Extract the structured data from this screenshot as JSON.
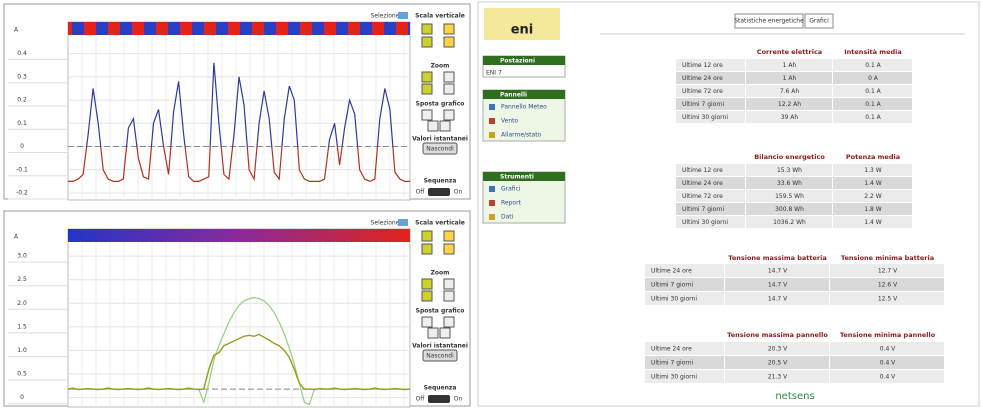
{
  "chart_data": [
    {
      "type": "line",
      "axis_label": "A",
      "ylim": [
        -0.23,
        0.48
      ],
      "yticks": [
        0.4,
        0.3,
        0.2,
        0.1,
        0,
        -0.1,
        -0.2
      ],
      "grid": true,
      "reference_line": 0,
      "series": [
        {
          "color_above": "#2c3a9e",
          "color_below": "#b2321f",
          "values": [
            -0.15,
            -0.15,
            -0.14,
            -0.12,
            0.05,
            0.25,
            0.1,
            -0.1,
            -0.14,
            -0.15,
            -0.15,
            -0.14,
            0.08,
            0.12,
            -0.05,
            -0.13,
            -0.14,
            0.1,
            0.16,
            0.0,
            -0.12,
            0.15,
            0.28,
            0.05,
            -0.13,
            -0.15,
            -0.15,
            -0.14,
            -0.13,
            0.36,
            0.1,
            -0.12,
            -0.14,
            0.05,
            0.3,
            0.18,
            -0.1,
            -0.14,
            0.1,
            0.24,
            0.12,
            -0.11,
            -0.14,
            0.12,
            0.26,
            0.2,
            -0.1,
            -0.14,
            -0.15,
            -0.15,
            -0.15,
            -0.14,
            0.03,
            0.1,
            -0.08,
            0.08,
            0.2,
            0.14,
            -0.1,
            -0.14,
            -0.15,
            -0.14,
            0.12,
            0.25,
            0.16,
            -0.11,
            -0.14,
            -0.15,
            -0.15
          ]
        }
      ]
    },
    {
      "type": "line",
      "axis_label": "A",
      "ylim": [
        -0.2,
        3.3
      ],
      "yticks": [
        {
          "value": 3,
          "label": "3.0"
        },
        2.5,
        {
          "value": 2,
          "label": "2.0"
        },
        1.5,
        {
          "value": 1,
          "label": "1.0"
        },
        0.5,
        0
      ],
      "grid": true,
      "reference_line": 0.18,
      "series": [
        {
          "color": "#8fd27a",
          "values": [
            0.18,
            0.18,
            0.18,
            0.18,
            0.18,
            0.18,
            0.18,
            0.18,
            0.18,
            0.18,
            0.18,
            0.18,
            0.18,
            0.18,
            0.18,
            0.18,
            0.18,
            0.18,
            0.18,
            0.18,
            0.18,
            0.18,
            0.18,
            0.18,
            0.18,
            0.18,
            0.18,
            -0.1,
            0.3,
            0.8,
            1.1,
            1.35,
            1.6,
            1.8,
            1.95,
            2.05,
            2.1,
            2.12,
            2.1,
            2.05,
            1.95,
            1.8,
            1.6,
            1.35,
            1.05,
            0.7,
            0.3,
            -0.1,
            -0.15,
            0.18,
            0.18,
            0.18,
            0.18,
            0.18,
            0.18,
            0.18,
            0.18,
            0.18,
            0.18,
            0.18,
            0.18,
            0.18,
            0.18,
            0.18,
            0.18,
            0.18,
            0.18,
            0.18,
            0.18
          ]
        },
        {
          "color": "#9a9a1e",
          "values": [
            0.18,
            0.2,
            0.17,
            0.18,
            0.19,
            0.18,
            0.17,
            0.18,
            0.2,
            0.18,
            0.17,
            0.18,
            0.19,
            0.18,
            0.17,
            0.18,
            0.2,
            0.18,
            0.17,
            0.18,
            0.19,
            0.18,
            0.17,
            0.18,
            0.2,
            0.18,
            0.17,
            0.18,
            0.6,
            0.9,
            0.95,
            1.1,
            1.15,
            1.2,
            1.25,
            1.3,
            1.32,
            1.3,
            1.34,
            1.28,
            1.22,
            1.15,
            1.1,
            1.0,
            0.85,
            0.6,
            0.3,
            0.18,
            0.18,
            0.17,
            0.19,
            0.18,
            0.18,
            0.2,
            0.18,
            0.17,
            0.18,
            0.19,
            0.18,
            0.17,
            0.18,
            0.2,
            0.18,
            0.17,
            0.18,
            0.19,
            0.18,
            0.17,
            0.18
          ]
        }
      ]
    }
  ],
  "controls": {
    "selection": "Selezione",
    "vertical_scale": "Scala verticale",
    "zoom": "Zoom",
    "move": "Sposta grafico",
    "instant": "Valori istantanei",
    "hide": "Nascondi",
    "sequence": "Sequenza",
    "off": "Off",
    "on": "On"
  },
  "app": {
    "logo": "eni",
    "sidebar": [
      {
        "title": "Postazioni",
        "items": [
          "ENI 7"
        ]
      },
      {
        "title": "Pannelli",
        "items": [
          "Pannello Meteo",
          "Vento",
          "Allarme/stato"
        ]
      },
      {
        "title": "Strumenti",
        "items": [
          "Grafici",
          "Report",
          "Dati"
        ]
      }
    ],
    "tabs": [
      "Statistiche energetiche",
      "Grafici"
    ],
    "tables": [
      {
        "headers": [
          "Corrente elettrica",
          "Intensità media"
        ],
        "rows": [
          [
            "Ultime 12 ore",
            "1 Ah",
            "0.1 A"
          ],
          [
            "Ultime 24 ore",
            "1 Ah",
            "0 A"
          ],
          [
            "Ultime 72 ore",
            "7.6 Ah",
            "0.1 A"
          ],
          [
            "Ultimi 7 giorni",
            "12.2 Ah",
            "0.1 A"
          ],
          [
            "Ultimi 30 giorni",
            "39 Ah",
            "0.1 A"
          ]
        ]
      },
      {
        "headers": [
          "Bilancio energetico",
          "Potenza media"
        ],
        "rows": [
          [
            "Ultime 12 ore",
            "15.3 Wh",
            "1.3 W"
          ],
          [
            "Ultime 24 ore",
            "33.6 Wh",
            "1.4 W"
          ],
          [
            "Ultime 72 ore",
            "159.5 Wh",
            "2.2 W"
          ],
          [
            "Ultimi 7 giorni",
            "300.8 Wh",
            "1.8 W"
          ],
          [
            "Ultimi 30 giorni",
            "1036.2 Wh",
            "1.4 W"
          ]
        ]
      },
      {
        "headers": [
          "Tensione massima batteria",
          "Tensione minima batteria"
        ],
        "rows": [
          [
            "Ultime 24 ore",
            "14.7 V",
            "12.7 V"
          ],
          [
            "Ultimi 7 giorni",
            "14.7 V",
            "12.6 V"
          ],
          [
            "Ultimi 30 giorni",
            "14.7 V",
            "12.5 V"
          ]
        ]
      },
      {
        "headers": [
          "Tensione massima pannello",
          "Tensione minima pannello"
        ],
        "rows": [
          [
            "Ultime 24 ore",
            "20.3 V",
            "0.4 V"
          ],
          [
            "Ultimi 7 giorni",
            "20.5 V",
            "0.4 V"
          ],
          [
            "Ultimi 30 giorni",
            "21.3 V",
            "0.4 V"
          ]
        ]
      }
    ],
    "footer": "netsens"
  }
}
